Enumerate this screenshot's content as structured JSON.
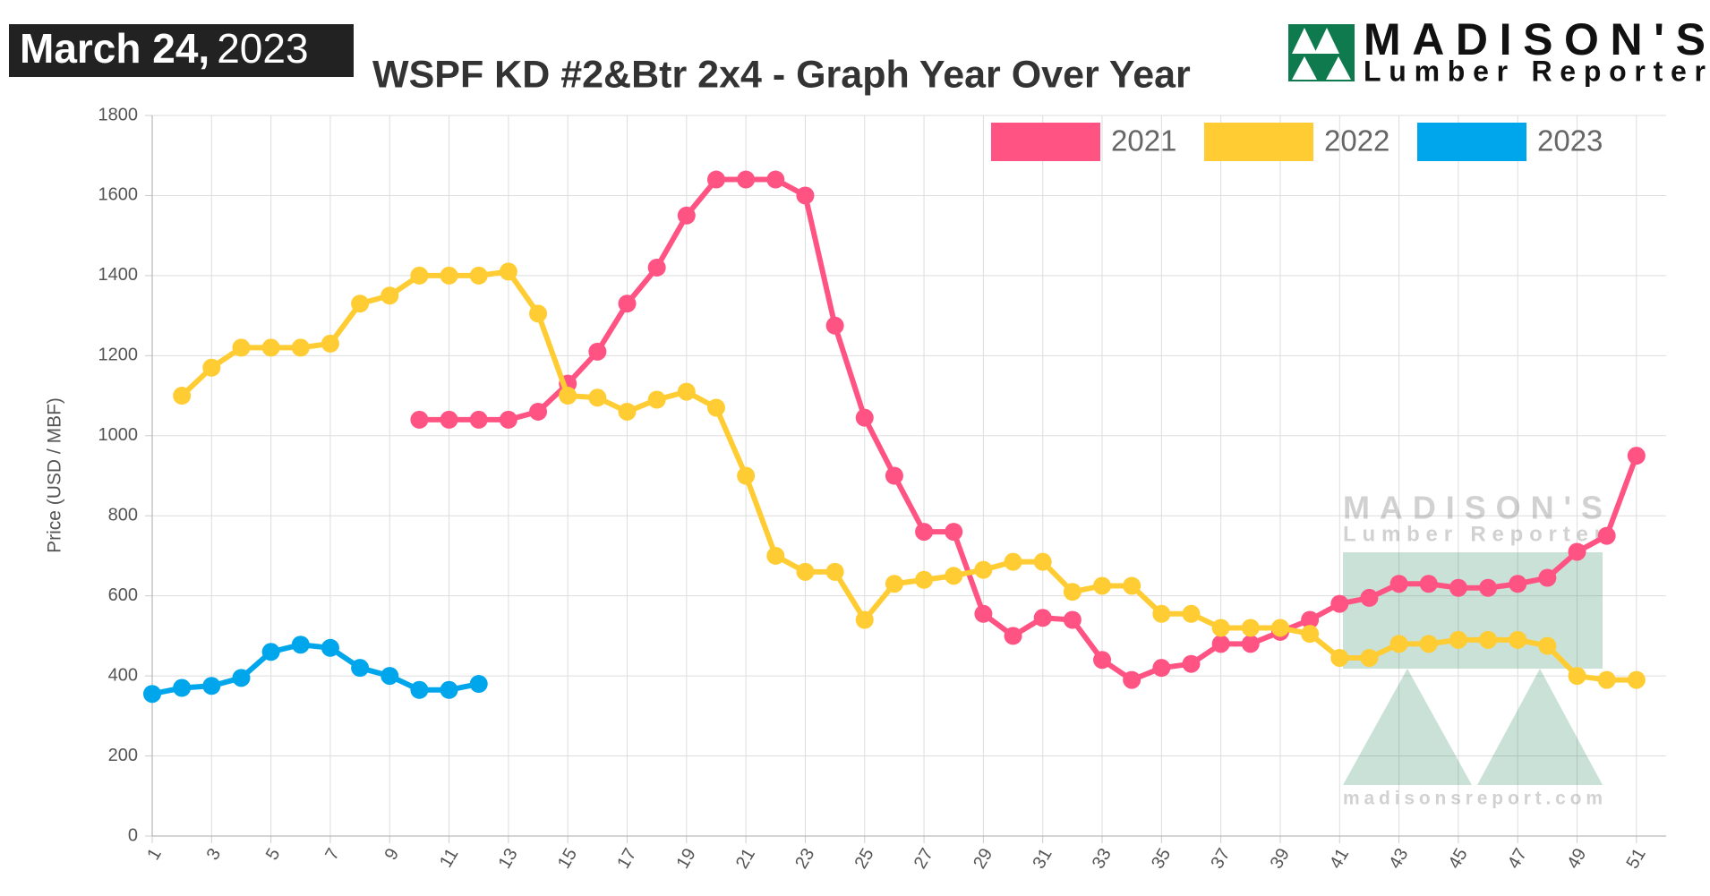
{
  "badge": {
    "date": "March 24,",
    "year": "2023"
  },
  "logo": {
    "name": "MADISON'S",
    "tagline": "Lumber Reporter",
    "url": "madisonsreport.com"
  },
  "chart_data": {
    "type": "line",
    "title": "WSPF KD #2&Btr 2x4 - Graph Year Over Year",
    "y_label": "Price (USD / MBF)",
    "x": [
      1,
      2,
      3,
      4,
      5,
      6,
      7,
      8,
      9,
      10,
      11,
      12,
      13,
      14,
      15,
      16,
      17,
      18,
      19,
      20,
      21,
      22,
      23,
      24,
      25,
      26,
      27,
      28,
      29,
      30,
      31,
      32,
      33,
      34,
      35,
      36,
      37,
      38,
      39,
      40,
      41,
      42,
      43,
      44,
      45,
      46,
      47,
      48,
      49,
      50,
      51
    ],
    "xlim": [
      1,
      52
    ],
    "xticks": [
      1,
      3,
      5,
      7,
      9,
      11,
      13,
      15,
      17,
      19,
      21,
      23,
      25,
      27,
      29,
      31,
      33,
      35,
      37,
      39,
      41,
      43,
      45,
      47,
      49,
      51
    ],
    "ylim": [
      0,
      1800
    ],
    "yticks": [
      0,
      200,
      400,
      600,
      800,
      1000,
      1200,
      1400,
      1600,
      1800
    ],
    "grid": true,
    "legend": "top-right",
    "series": [
      {
        "name": "2021",
        "color": "#ff5483",
        "values": [
          null,
          null,
          null,
          null,
          null,
          null,
          null,
          null,
          null,
          1040,
          1040,
          1040,
          1040,
          1060,
          1130,
          1210,
          1330,
          1420,
          1550,
          1640,
          1640,
          1640,
          1600,
          1275,
          1045,
          900,
          760,
          760,
          555,
          500,
          545,
          540,
          440,
          390,
          420,
          430,
          480,
          480,
          510,
          540,
          580,
          595,
          630,
          630,
          620,
          620,
          630,
          645,
          710,
          750,
          950
        ]
      },
      {
        "name": "2022",
        "color": "#ffcd33",
        "values": [
          null,
          1100,
          1170,
          1220,
          1220,
          1220,
          1230,
          1330,
          1350,
          1400,
          1400,
          1400,
          1410,
          1305,
          1100,
          1095,
          1060,
          1090,
          1110,
          1070,
          900,
          700,
          660,
          660,
          540,
          630,
          640,
          650,
          665,
          685,
          685,
          610,
          625,
          625,
          555,
          555,
          520,
          520,
          520,
          505,
          445,
          445,
          480,
          480,
          490,
          490,
          490,
          475,
          400,
          390,
          390
        ]
      },
      {
        "name": "2023",
        "color": "#00a6ec",
        "values": [
          355,
          370,
          375,
          395,
          460,
          478,
          470,
          420,
          400,
          365,
          365,
          380,
          null,
          null,
          null,
          null,
          null,
          null,
          null,
          null,
          null,
          null,
          null,
          null,
          null,
          null,
          null,
          null,
          null,
          null,
          null,
          null,
          null,
          null,
          null,
          null,
          null,
          null,
          null,
          null,
          null,
          null,
          null,
          null,
          null,
          null,
          null,
          null,
          null,
          null,
          null
        ]
      }
    ]
  }
}
